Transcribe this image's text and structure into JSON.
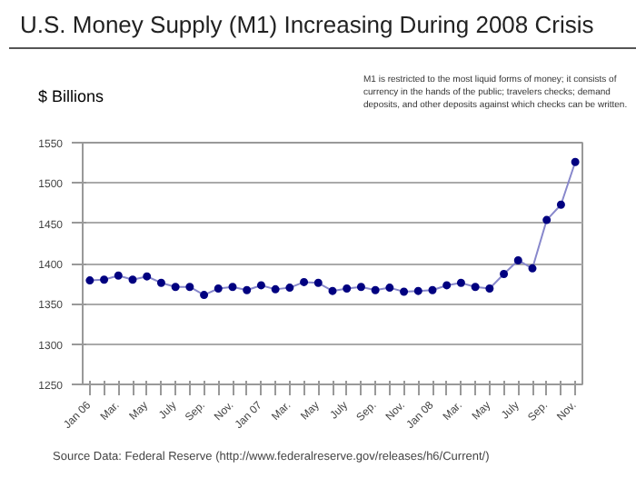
{
  "chart_data": {
    "type": "line",
    "title": "U.S. Money Supply (M1) Increasing During 2008 Crisis",
    "ylabel": "$ Billions",
    "annotations": [
      "M1 is restricted to the most liquid forms of money; it consists of currency in the hands of the public; travelers checks; demand deposits, and other deposits against which checks can be written.",
      "Source Data: Federal Reserve (http://www.federalreserve.gov/releases/h6/Current/)"
    ],
    "categories": [
      "Jan 06",
      null,
      "Mar.",
      null,
      "May",
      null,
      "July",
      null,
      "Sep.",
      null,
      "Nov.",
      null,
      "Jan 07",
      null,
      "Mar.",
      null,
      "May",
      null,
      "July",
      null,
      "Sep.",
      null,
      "Nov.",
      null,
      "Jan 08",
      null,
      "Mar.",
      null,
      "May",
      null,
      "July",
      null,
      "Sep.",
      null,
      "Nov."
    ],
    "series": [
      {
        "color": "#000080",
        "values": [
          1379,
          1380,
          1385,
          1380,
          1384,
          1376,
          1371,
          1371,
          1361,
          1369,
          1371,
          1367,
          1373,
          1368,
          1370,
          1377,
          1376,
          1366,
          1369,
          1371,
          1367,
          1370,
          1365,
          1366,
          1367,
          1373,
          1376,
          1371,
          1369,
          1387,
          1404,
          1394,
          1454,
          1473,
          1526
        ]
      }
    ],
    "ylim": [
      1250,
      1550
    ],
    "yticks": [
      1250,
      1300,
      1350,
      1400,
      1450,
      1500,
      1550
    ],
    "grid": "y",
    "marker": "circle",
    "line_style": "solid"
  }
}
